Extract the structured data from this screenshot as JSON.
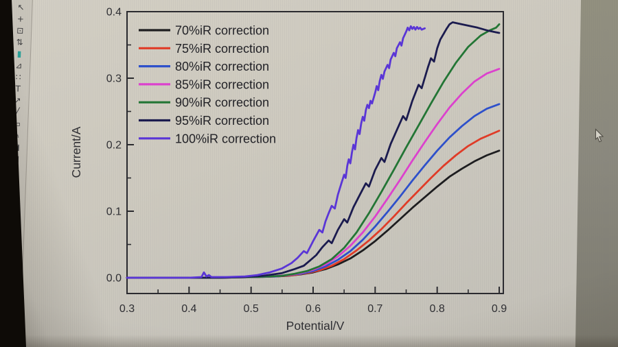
{
  "colors": {
    "screen_bg": "#cecabf",
    "axis": "#2a2a2e",
    "tick_label": "#2e2e32",
    "legend_text": "#1f1f24",
    "toolbar_bg": "#c6c2b8",
    "bezel": "#0e0b07",
    "right_band": "#8b897e",
    "mask_tool_accent": "#2aa198"
  },
  "toolbar": {
    "tools": [
      {
        "name": "pointer-tool",
        "glyph": "↖"
      },
      {
        "name": "move-tool",
        "glyph": "+"
      },
      {
        "name": "zoom-tool",
        "glyph": "⊡"
      },
      {
        "name": "data-reader-tool",
        "glyph": "⇅"
      },
      {
        "name": "mask-tool",
        "glyph": "▮",
        "color": "#2aa198"
      },
      {
        "name": "data-selector-tool",
        "glyph": "⊿"
      },
      {
        "name": "selection-tool",
        "glyph": "∷"
      },
      {
        "name": "text-tool",
        "glyph": "T"
      },
      {
        "name": "arrow-tool",
        "glyph": "↗"
      },
      {
        "name": "line-tool",
        "glyph": "╱"
      },
      {
        "name": "rectangle-tool",
        "glyph": "▭"
      },
      {
        "name": "freehand-tool",
        "glyph": "✎"
      },
      {
        "name": "eraser-tool",
        "glyph": "◪"
      },
      {
        "name": "region-tool",
        "glyph": "▣"
      }
    ]
  },
  "icons": [
    {
      "name": "mouse-cursor",
      "meaning": "standard arrow pointer"
    }
  ],
  "chart_data": {
    "type": "line",
    "title": "",
    "xlabel": "Potential/V",
    "ylabel": "Current/A",
    "xlim": [
      0.3,
      0.9
    ],
    "ylim": [
      -0.024,
      0.4
    ],
    "x_ticks": [
      0.3,
      0.4,
      0.5,
      0.6,
      0.7,
      0.8,
      0.9
    ],
    "x_tick_labels": [
      "0.3",
      "0.4",
      "0.5",
      "0.6",
      "0.7",
      "0.8",
      "0.9"
    ],
    "x_minor_ticks": [
      0.35,
      0.45,
      0.55,
      0.65,
      0.75,
      0.85
    ],
    "y_ticks": [
      0.0,
      0.1,
      0.2,
      0.3,
      0.4
    ],
    "y_tick_labels": [
      "0.0",
      "0.1",
      "0.2",
      "0.3",
      "0.4"
    ],
    "y_minor_ticks": [
      0.05,
      0.15,
      0.25,
      0.35
    ],
    "grid": false,
    "legend_position": "top-left",
    "series": [
      {
        "name": "70%iR correction",
        "color": "#1c1c1e",
        "points": [
          [
            0.3,
            0
          ],
          [
            0.35,
            0
          ],
          [
            0.4,
            0
          ],
          [
            0.45,
            0
          ],
          [
            0.48,
            0.001
          ],
          [
            0.51,
            0.001
          ],
          [
            0.54,
            0.002
          ],
          [
            0.56,
            0.003
          ],
          [
            0.58,
            0.005
          ],
          [
            0.6,
            0.008
          ],
          [
            0.62,
            0.013
          ],
          [
            0.64,
            0.02
          ],
          [
            0.66,
            0.029
          ],
          [
            0.68,
            0.041
          ],
          [
            0.7,
            0.055
          ],
          [
            0.72,
            0.071
          ],
          [
            0.74,
            0.088
          ],
          [
            0.76,
            0.105
          ],
          [
            0.78,
            0.121
          ],
          [
            0.8,
            0.137
          ],
          [
            0.82,
            0.152
          ],
          [
            0.84,
            0.164
          ],
          [
            0.86,
            0.175
          ],
          [
            0.88,
            0.184
          ],
          [
            0.9,
            0.191
          ]
        ]
      },
      {
        "name": "75%iR correction",
        "color": "#e23b26",
        "points": [
          [
            0.3,
            0
          ],
          [
            0.4,
            0
          ],
          [
            0.45,
            0
          ],
          [
            0.5,
            0.001
          ],
          [
            0.54,
            0.002
          ],
          [
            0.57,
            0.004
          ],
          [
            0.59,
            0.007
          ],
          [
            0.61,
            0.011
          ],
          [
            0.63,
            0.018
          ],
          [
            0.65,
            0.028
          ],
          [
            0.67,
            0.041
          ],
          [
            0.69,
            0.056
          ],
          [
            0.71,
            0.073
          ],
          [
            0.73,
            0.092
          ],
          [
            0.75,
            0.112
          ],
          [
            0.77,
            0.131
          ],
          [
            0.79,
            0.15
          ],
          [
            0.81,
            0.168
          ],
          [
            0.83,
            0.184
          ],
          [
            0.85,
            0.198
          ],
          [
            0.87,
            0.209
          ],
          [
            0.89,
            0.217
          ],
          [
            0.9,
            0.221
          ]
        ]
      },
      {
        "name": "80%iR correction",
        "color": "#2d50cc",
        "points": [
          [
            0.3,
            0
          ],
          [
            0.4,
            0
          ],
          [
            0.45,
            0
          ],
          [
            0.5,
            0.001
          ],
          [
            0.54,
            0.002
          ],
          [
            0.56,
            0.004
          ],
          [
            0.58,
            0.006
          ],
          [
            0.6,
            0.01
          ],
          [
            0.62,
            0.017
          ],
          [
            0.64,
            0.027
          ],
          [
            0.66,
            0.04
          ],
          [
            0.68,
            0.057
          ],
          [
            0.7,
            0.077
          ],
          [
            0.72,
            0.099
          ],
          [
            0.74,
            0.122
          ],
          [
            0.76,
            0.146
          ],
          [
            0.78,
            0.169
          ],
          [
            0.8,
            0.191
          ],
          [
            0.82,
            0.211
          ],
          [
            0.84,
            0.228
          ],
          [
            0.86,
            0.243
          ],
          [
            0.88,
            0.254
          ],
          [
            0.9,
            0.261
          ]
        ]
      },
      {
        "name": "85%iR correction",
        "color": "#de41cf",
        "points": [
          [
            0.3,
            0
          ],
          [
            0.4,
            0
          ],
          [
            0.45,
            0
          ],
          [
            0.5,
            0.001
          ],
          [
            0.53,
            0.002
          ],
          [
            0.56,
            0.004
          ],
          [
            0.58,
            0.007
          ],
          [
            0.6,
            0.012
          ],
          [
            0.62,
            0.02
          ],
          [
            0.64,
            0.032
          ],
          [
            0.66,
            0.048
          ],
          [
            0.68,
            0.068
          ],
          [
            0.7,
            0.092
          ],
          [
            0.72,
            0.119
          ],
          [
            0.74,
            0.147
          ],
          [
            0.76,
            0.176
          ],
          [
            0.78,
            0.204
          ],
          [
            0.8,
            0.231
          ],
          [
            0.82,
            0.256
          ],
          [
            0.84,
            0.277
          ],
          [
            0.86,
            0.295
          ],
          [
            0.88,
            0.307
          ],
          [
            0.9,
            0.314
          ]
        ]
      },
      {
        "name": "90%iR correction",
        "color": "#227634",
        "points": [
          [
            0.3,
            0
          ],
          [
            0.4,
            0
          ],
          [
            0.45,
            0
          ],
          [
            0.5,
            0.001
          ],
          [
            0.53,
            0.002
          ],
          [
            0.55,
            0.003
          ],
          [
            0.57,
            0.006
          ],
          [
            0.59,
            0.01
          ],
          [
            0.61,
            0.017
          ],
          [
            0.63,
            0.028
          ],
          [
            0.65,
            0.045
          ],
          [
            0.67,
            0.068
          ],
          [
            0.69,
            0.097
          ],
          [
            0.71,
            0.129
          ],
          [
            0.73,
            0.162
          ],
          [
            0.75,
            0.196
          ],
          [
            0.77,
            0.229
          ],
          [
            0.79,
            0.262
          ],
          [
            0.81,
            0.294
          ],
          [
            0.83,
            0.323
          ],
          [
            0.85,
            0.347
          ],
          [
            0.87,
            0.364
          ],
          [
            0.885,
            0.372
          ],
          [
            0.895,
            0.376
          ],
          [
            0.9,
            0.381
          ]
        ]
      },
      {
        "name": "95%iR correction",
        "color": "#1a1a4e",
        "points": [
          [
            0.3,
            0
          ],
          [
            0.4,
            0
          ],
          [
            0.45,
            0
          ],
          [
            0.49,
            0.001
          ],
          [
            0.52,
            0.003
          ],
          [
            0.55,
            0.007
          ],
          [
            0.57,
            0.013
          ],
          [
            0.585,
            0.018
          ],
          [
            0.595,
            0.026
          ],
          [
            0.605,
            0.034
          ],
          [
            0.615,
            0.046
          ],
          [
            0.625,
            0.056
          ],
          [
            0.63,
            0.052
          ],
          [
            0.64,
            0.072
          ],
          [
            0.65,
            0.088
          ],
          [
            0.655,
            0.083
          ],
          [
            0.665,
            0.106
          ],
          [
            0.675,
            0.124
          ],
          [
            0.685,
            0.142
          ],
          [
            0.69,
            0.137
          ],
          [
            0.7,
            0.162
          ],
          [
            0.71,
            0.18
          ],
          [
            0.715,
            0.174
          ],
          [
            0.725,
            0.201
          ],
          [
            0.735,
            0.222
          ],
          [
            0.745,
            0.243
          ],
          [
            0.75,
            0.237
          ],
          [
            0.76,
            0.266
          ],
          [
            0.77,
            0.29
          ],
          [
            0.775,
            0.285
          ],
          [
            0.785,
            0.316
          ],
          [
            0.79,
            0.33
          ],
          [
            0.795,
            0.325
          ],
          [
            0.8,
            0.345
          ],
          [
            0.805,
            0.358
          ],
          [
            0.81,
            0.366
          ],
          [
            0.815,
            0.374
          ],
          [
            0.82,
            0.381
          ],
          [
            0.825,
            0.384
          ],
          [
            0.835,
            0.382
          ],
          [
            0.85,
            0.379
          ],
          [
            0.865,
            0.376
          ],
          [
            0.88,
            0.372
          ],
          [
            0.895,
            0.369
          ],
          [
            0.9,
            0.368
          ]
        ]
      },
      {
        "name": "100%iR correction",
        "color": "#5a35d8",
        "points": [
          [
            0.3,
            0
          ],
          [
            0.35,
            0
          ],
          [
            0.4,
            0
          ],
          [
            0.42,
            0.001
          ],
          [
            0.424,
            0.008
          ],
          [
            0.428,
            0.002
          ],
          [
            0.432,
            0.004
          ],
          [
            0.436,
            0.001
          ],
          [
            0.46,
            0.001
          ],
          [
            0.49,
            0.002
          ],
          [
            0.51,
            0.004
          ],
          [
            0.53,
            0.008
          ],
          [
            0.55,
            0.014
          ],
          [
            0.565,
            0.022
          ],
          [
            0.575,
            0.03
          ],
          [
            0.585,
            0.04
          ],
          [
            0.59,
            0.037
          ],
          [
            0.6,
            0.055
          ],
          [
            0.61,
            0.072
          ],
          [
            0.615,
            0.068
          ],
          [
            0.62,
            0.085
          ],
          [
            0.625,
            0.097
          ],
          [
            0.63,
            0.108
          ],
          [
            0.635,
            0.104
          ],
          [
            0.64,
            0.125
          ],
          [
            0.645,
            0.14
          ],
          [
            0.65,
            0.155
          ],
          [
            0.6525,
            0.15
          ],
          [
            0.655,
            0.168
          ],
          [
            0.6575,
            0.178
          ],
          [
            0.66,
            0.172
          ],
          [
            0.6625,
            0.188
          ],
          [
            0.665,
            0.2
          ],
          [
            0.6675,
            0.193
          ],
          [
            0.67,
            0.21
          ],
          [
            0.6725,
            0.222
          ],
          [
            0.675,
            0.216
          ],
          [
            0.6775,
            0.232
          ],
          [
            0.68,
            0.242
          ],
          [
            0.6825,
            0.236
          ],
          [
            0.685,
            0.252
          ],
          [
            0.6875,
            0.26
          ],
          [
            0.69,
            0.255
          ],
          [
            0.6925,
            0.266
          ],
          [
            0.695,
            0.262
          ],
          [
            0.7,
            0.278
          ],
          [
            0.7025,
            0.288
          ],
          [
            0.705,
            0.282
          ],
          [
            0.7075,
            0.296
          ],
          [
            0.71,
            0.305
          ],
          [
            0.7125,
            0.299
          ],
          [
            0.715,
            0.31
          ],
          [
            0.72,
            0.32
          ],
          [
            0.7225,
            0.315
          ],
          [
            0.725,
            0.328
          ],
          [
            0.73,
            0.338
          ],
          [
            0.7325,
            0.333
          ],
          [
            0.735,
            0.345
          ],
          [
            0.74,
            0.354
          ],
          [
            0.7425,
            0.349
          ],
          [
            0.745,
            0.36
          ],
          [
            0.75,
            0.37
          ],
          [
            0.7525,
            0.376
          ],
          [
            0.755,
            0.372
          ],
          [
            0.7575,
            0.378
          ],
          [
            0.76,
            0.374
          ],
          [
            0.7625,
            0.377
          ],
          [
            0.765,
            0.373
          ],
          [
            0.7675,
            0.377
          ],
          [
            0.77,
            0.374
          ],
          [
            0.7725,
            0.376
          ],
          [
            0.775,
            0.373
          ],
          [
            0.78,
            0.375
          ]
        ]
      }
    ]
  }
}
